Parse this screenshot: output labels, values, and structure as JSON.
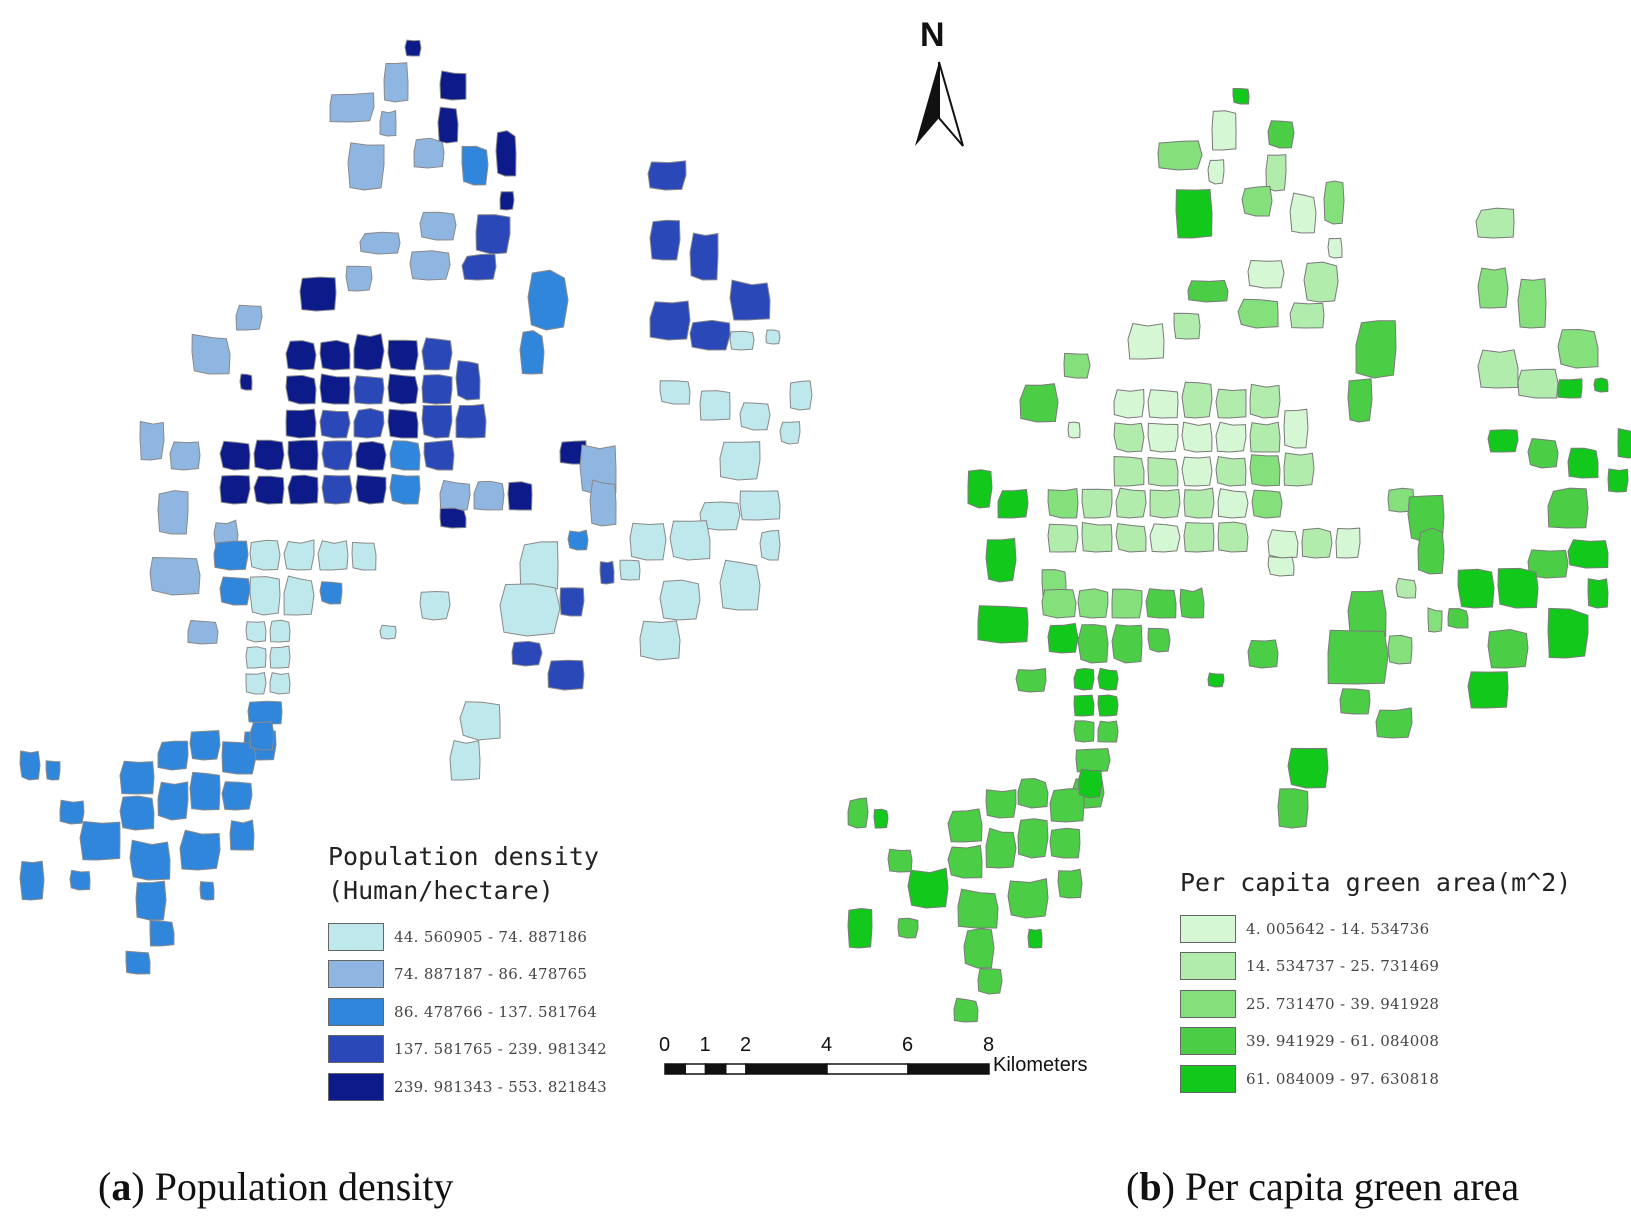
{
  "panel_a": {
    "caption_letter": "a",
    "caption_text": "Population density",
    "legend": {
      "title_line1": "Population density",
      "title_line2": "(Human/hectare)",
      "classes": [
        {
          "range": "44. 560905  -  74. 887186",
          "color": "#bfe8ec"
        },
        {
          "range": "74. 887187  -  86. 478765",
          "color": "#8fb6e0"
        },
        {
          "range": "86. 478766  -  137. 581764",
          "color": "#2f86db"
        },
        {
          "range": "137. 581765  -  239. 981342",
          "color": "#2a48b8"
        },
        {
          "range": "239. 981343  -  553. 821843",
          "color": "#0c1a8a"
        }
      ]
    }
  },
  "panel_b": {
    "caption_letter": "b",
    "caption_text": "Per capita green area",
    "legend": {
      "title": "Per capita green area(m^2)",
      "classes": [
        {
          "range": "4. 005642  -  14. 534736",
          "color": "#d6f7d3"
        },
        {
          "range": "14. 534737  -  25. 731469",
          "color": "#b2ecad"
        },
        {
          "range": "25. 731470  -  39. 941928",
          "color": "#83e07b"
        },
        {
          "range": "39. 941929  -  61. 084008",
          "color": "#4ccd46"
        },
        {
          "range": "61. 084009  -  97. 630818",
          "color": "#12c81a"
        }
      ]
    }
  },
  "north_arrow": {
    "label": "N"
  },
  "scale_bar": {
    "ticks": [
      "0",
      "1",
      "2",
      "4",
      "6",
      "8"
    ],
    "tick_km": [
      0,
      1,
      2,
      4,
      6,
      8
    ],
    "unit": "Kilometers"
  }
}
